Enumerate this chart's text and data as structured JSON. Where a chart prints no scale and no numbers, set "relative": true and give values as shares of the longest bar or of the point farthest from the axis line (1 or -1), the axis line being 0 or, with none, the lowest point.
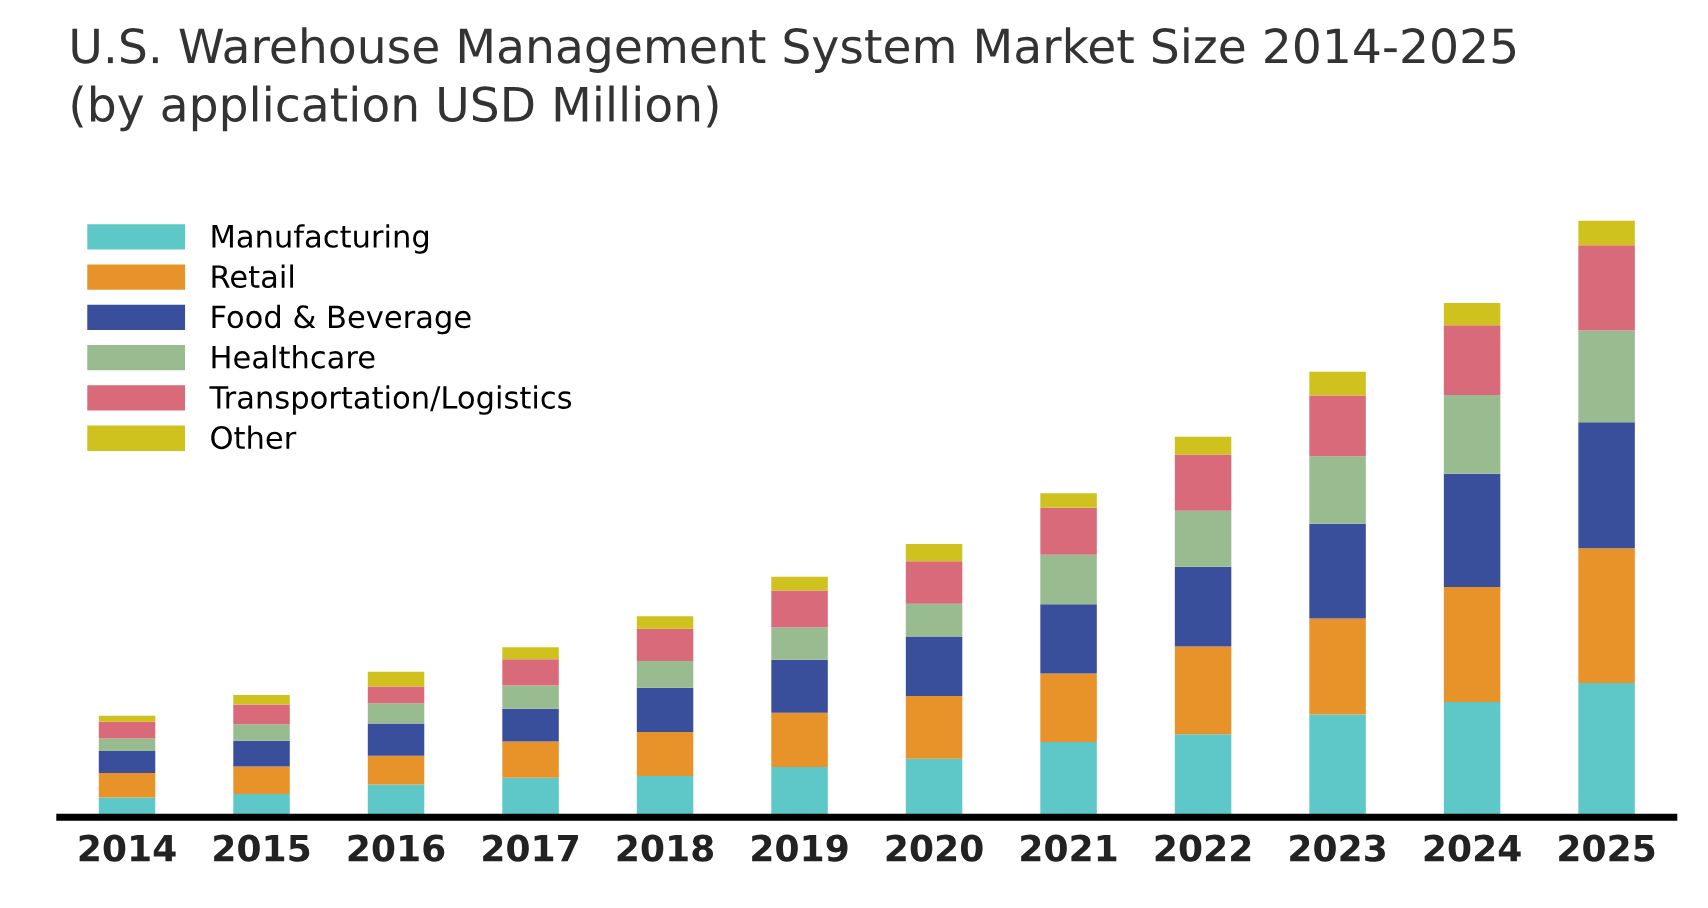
{
  "chart_data": {
    "type": "bar",
    "title": "U.S. Warehouse Management System Market Size 2014-2025\n(by application USD Million)",
    "categories": [
      "2014",
      "2015",
      "2016",
      "2017",
      "2018",
      "2019",
      "2020",
      "2021",
      "2022",
      "2023",
      "2024",
      "2025"
    ],
    "stacked": true,
    "relative": true,
    "legend": "top left",
    "grid": false,
    "series": [
      {
        "name": "Manufacturing",
        "color": "#5ec8c8",
        "values": [
          0.033,
          0.039,
          0.055,
          0.066,
          0.069,
          0.084,
          0.098,
          0.126,
          0.139,
          0.172,
          0.193,
          0.225
        ]
      },
      {
        "name": "Retail",
        "color": "#e8922a",
        "values": [
          0.041,
          0.046,
          0.048,
          0.061,
          0.074,
          0.091,
          0.105,
          0.115,
          0.147,
          0.161,
          0.193,
          0.226
        ]
      },
      {
        "name": "Food & Beverage",
        "color": "#3a4f9c",
        "values": [
          0.037,
          0.043,
          0.054,
          0.055,
          0.074,
          0.089,
          0.1,
          0.116,
          0.134,
          0.159,
          0.19,
          0.211
        ]
      },
      {
        "name": "Healthcare",
        "color": "#98bb8f",
        "values": [
          0.021,
          0.028,
          0.034,
          0.039,
          0.045,
          0.054,
          0.055,
          0.083,
          0.094,
          0.113,
          0.132,
          0.154
        ]
      },
      {
        "name": "Transportation/Logistics",
        "color": "#d96a7a",
        "values": [
          0.028,
          0.033,
          0.028,
          0.044,
          0.054,
          0.062,
          0.071,
          0.079,
          0.094,
          0.102,
          0.117,
          0.143
        ]
      },
      {
        "name": "Other",
        "color": "#cfc21e",
        "values": [
          0.01,
          0.016,
          0.025,
          0.02,
          0.021,
          0.023,
          0.029,
          0.024,
          0.03,
          0.04,
          0.037,
          0.041
        ]
      }
    ]
  }
}
